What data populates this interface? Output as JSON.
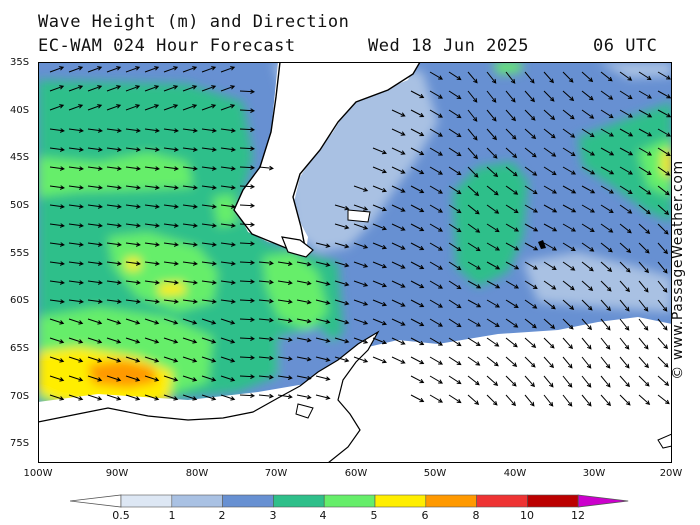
{
  "header": {
    "title": "Wave Height (m) and Direction",
    "model": "EC-WAM 024 Hour Forecast",
    "date": "Wed 18 Jun 2025",
    "time": "06 UTC"
  },
  "credit": "© www.PassageWeather.com",
  "map": {
    "lon_range": [
      -100,
      -20
    ],
    "lat_range": [
      -77,
      -35
    ],
    "lat_labels": [
      "35S",
      "40S",
      "45S",
      "50S",
      "55S",
      "60S",
      "65S",
      "70S",
      "75S"
    ],
    "lon_labels": [
      "100W",
      "90W",
      "80W",
      "70W",
      "60W",
      "50W",
      "40W",
      "30W",
      "20W"
    ],
    "land_color": "#ffffff",
    "arrow_color": "#000000"
  },
  "legend": {
    "labels": [
      "0.5",
      "1",
      "2",
      "3",
      "4",
      "5",
      "6",
      "8",
      "10",
      "12"
    ],
    "colors": [
      "#dde7f4",
      "#a9c1e3",
      "#6790d2",
      "#2fbf8a",
      "#66ee6a",
      "#ffee00",
      "#ff9900",
      "#ee3333",
      "#bb0000",
      "#cc00cc"
    ]
  }
}
